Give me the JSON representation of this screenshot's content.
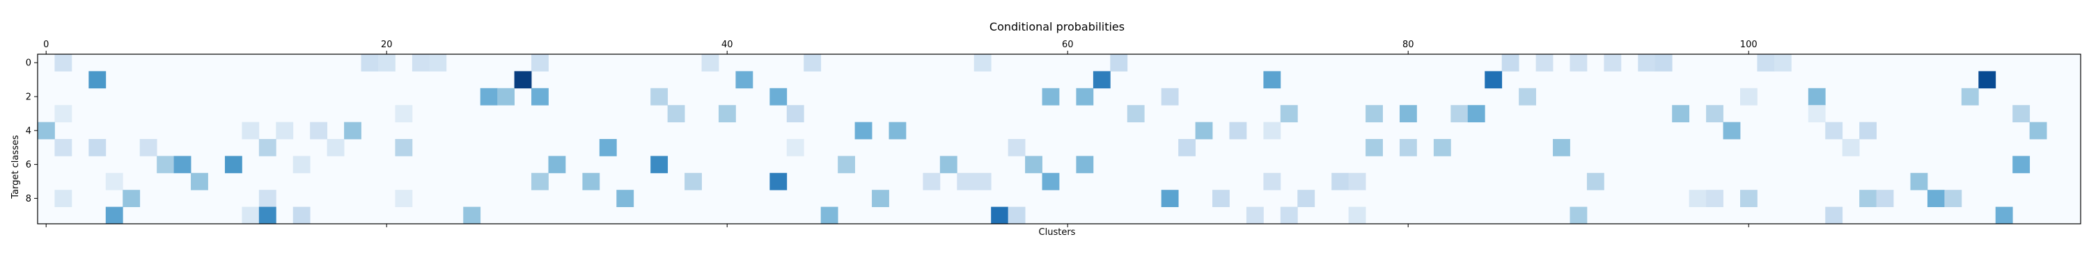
{
  "chart_data": {
    "type": "heatmap",
    "title": "Conditional probabilities",
    "xlabel": "Clusters",
    "ylabel": "Target classes",
    "colormap": "Blues",
    "vmin": 0,
    "vmax": 1,
    "n_rows": 10,
    "n_cols": 120,
    "x_ticks": [
      0,
      20,
      40,
      60,
      80,
      100
    ],
    "x_tick_labels": [
      "0",
      "20",
      "40",
      "60",
      "80",
      "100"
    ],
    "x_ticks_position": "top",
    "y_ticks": [
      0,
      2,
      4,
      6,
      8
    ],
    "y_tick_labels": [
      "0",
      "2",
      "4",
      "6",
      "8"
    ],
    "cells": [
      [
        0,
        1,
        0.2
      ],
      [
        0,
        19,
        0.22
      ],
      [
        0,
        20,
        0.18
      ],
      [
        0,
        22,
        0.2
      ],
      [
        0,
        23,
        0.18
      ],
      [
        0,
        29,
        0.22
      ],
      [
        0,
        39,
        0.18
      ],
      [
        0,
        45,
        0.22
      ],
      [
        0,
        55,
        0.18
      ],
      [
        0,
        63,
        0.25
      ],
      [
        0,
        86,
        0.25
      ],
      [
        0,
        88,
        0.2
      ],
      [
        0,
        90,
        0.2
      ],
      [
        0,
        92,
        0.2
      ],
      [
        0,
        94,
        0.22
      ],
      [
        0,
        95,
        0.25
      ],
      [
        0,
        101,
        0.22
      ],
      [
        0,
        102,
        0.18
      ],
      [
        1,
        3,
        0.6
      ],
      [
        1,
        28,
        0.95
      ],
      [
        1,
        41,
        0.5
      ],
      [
        1,
        62,
        0.7
      ],
      [
        1,
        72,
        0.55
      ],
      [
        1,
        85,
        0.75
      ],
      [
        1,
        114,
        0.9
      ],
      [
        2,
        26,
        0.5
      ],
      [
        2,
        27,
        0.4
      ],
      [
        2,
        29,
        0.5
      ],
      [
        2,
        36,
        0.3
      ],
      [
        2,
        43,
        0.5
      ],
      [
        2,
        59,
        0.45
      ],
      [
        2,
        61,
        0.45
      ],
      [
        2,
        66,
        0.25
      ],
      [
        2,
        87,
        0.3
      ],
      [
        2,
        100,
        0.15
      ],
      [
        2,
        104,
        0.45
      ],
      [
        2,
        113,
        0.35
      ],
      [
        3,
        1,
        0.12
      ],
      [
        3,
        21,
        0.12
      ],
      [
        3,
        37,
        0.3
      ],
      [
        3,
        40,
        0.35
      ],
      [
        3,
        44,
        0.25
      ],
      [
        3,
        64,
        0.3
      ],
      [
        3,
        73,
        0.35
      ],
      [
        3,
        78,
        0.35
      ],
      [
        3,
        80,
        0.45
      ],
      [
        3,
        83,
        0.3
      ],
      [
        3,
        84,
        0.5
      ],
      [
        3,
        96,
        0.4
      ],
      [
        3,
        98,
        0.3
      ],
      [
        3,
        104,
        0.12
      ],
      [
        3,
        116,
        0.3
      ],
      [
        4,
        0,
        0.4
      ],
      [
        4,
        12,
        0.15
      ],
      [
        4,
        14,
        0.15
      ],
      [
        4,
        16,
        0.2
      ],
      [
        4,
        18,
        0.4
      ],
      [
        4,
        48,
        0.5
      ],
      [
        4,
        50,
        0.45
      ],
      [
        4,
        68,
        0.4
      ],
      [
        4,
        70,
        0.25
      ],
      [
        4,
        72,
        0.15
      ],
      [
        4,
        99,
        0.45
      ],
      [
        4,
        105,
        0.22
      ],
      [
        4,
        107,
        0.25
      ],
      [
        4,
        117,
        0.4
      ],
      [
        5,
        1,
        0.2
      ],
      [
        5,
        3,
        0.25
      ],
      [
        5,
        6,
        0.2
      ],
      [
        5,
        13,
        0.3
      ],
      [
        5,
        17,
        0.15
      ],
      [
        5,
        21,
        0.3
      ],
      [
        5,
        33,
        0.5
      ],
      [
        5,
        44,
        0.12
      ],
      [
        5,
        57,
        0.2
      ],
      [
        5,
        67,
        0.25
      ],
      [
        5,
        78,
        0.35
      ],
      [
        5,
        80,
        0.3
      ],
      [
        5,
        82,
        0.35
      ],
      [
        5,
        89,
        0.4
      ],
      [
        5,
        106,
        0.15
      ],
      [
        6,
        7,
        0.35
      ],
      [
        6,
        8,
        0.55
      ],
      [
        6,
        11,
        0.6
      ],
      [
        6,
        15,
        0.15
      ],
      [
        6,
        30,
        0.45
      ],
      [
        6,
        36,
        0.65
      ],
      [
        6,
        47,
        0.35
      ],
      [
        6,
        53,
        0.4
      ],
      [
        6,
        58,
        0.4
      ],
      [
        6,
        61,
        0.45
      ],
      [
        6,
        116,
        0.5
      ],
      [
        7,
        4,
        0.12
      ],
      [
        7,
        9,
        0.4
      ],
      [
        7,
        29,
        0.35
      ],
      [
        7,
        32,
        0.4
      ],
      [
        7,
        38,
        0.3
      ],
      [
        7,
        43,
        0.7
      ],
      [
        7,
        52,
        0.2
      ],
      [
        7,
        54,
        0.2
      ],
      [
        7,
        55,
        0.2
      ],
      [
        7,
        59,
        0.5
      ],
      [
        7,
        72,
        0.2
      ],
      [
        7,
        76,
        0.25
      ],
      [
        7,
        77,
        0.2
      ],
      [
        7,
        91,
        0.3
      ],
      [
        7,
        110,
        0.4
      ],
      [
        8,
        1,
        0.15
      ],
      [
        8,
        5,
        0.4
      ],
      [
        8,
        13,
        0.2
      ],
      [
        8,
        21,
        0.12
      ],
      [
        8,
        34,
        0.45
      ],
      [
        8,
        49,
        0.4
      ],
      [
        8,
        66,
        0.55
      ],
      [
        8,
        69,
        0.25
      ],
      [
        8,
        74,
        0.25
      ],
      [
        8,
        97,
        0.15
      ],
      [
        8,
        98,
        0.2
      ],
      [
        8,
        100,
        0.3
      ],
      [
        8,
        107,
        0.35
      ],
      [
        8,
        108,
        0.25
      ],
      [
        8,
        111,
        0.5
      ],
      [
        8,
        112,
        0.3
      ],
      [
        9,
        4,
        0.55
      ],
      [
        9,
        12,
        0.15
      ],
      [
        9,
        13,
        0.65
      ],
      [
        9,
        15,
        0.25
      ],
      [
        9,
        25,
        0.4
      ],
      [
        9,
        46,
        0.45
      ],
      [
        9,
        56,
        0.75
      ],
      [
        9,
        57,
        0.25
      ],
      [
        9,
        71,
        0.2
      ],
      [
        9,
        73,
        0.22
      ],
      [
        9,
        77,
        0.15
      ],
      [
        9,
        90,
        0.35
      ],
      [
        9,
        105,
        0.25
      ],
      [
        9,
        115,
        0.5
      ]
    ]
  }
}
